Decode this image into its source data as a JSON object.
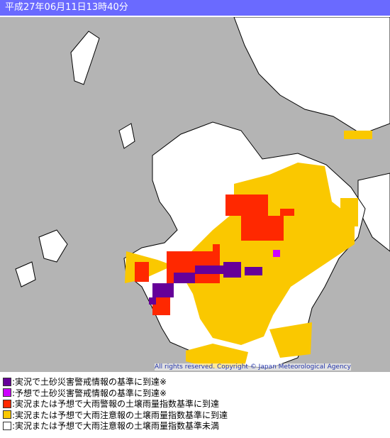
{
  "header": {
    "title": "平成27年06月11日13時40分"
  },
  "map": {
    "copyright": "All rights reserved. Copyright © Japan Meteorological Agency"
  },
  "legend": {
    "items": [
      ":実況で土砂災害警戒情報の基準に到達※",
      ":予想で土砂災害警戒情報の基準に到達※",
      ":実況または予想で大雨警報の土壌雨量指数基準に到達",
      ":実況または予想で大雨注意報の土壌雨量指数基準に到達",
      ":実況または予想で大雨注意報の土壌雨量指数基準未満"
    ]
  }
}
